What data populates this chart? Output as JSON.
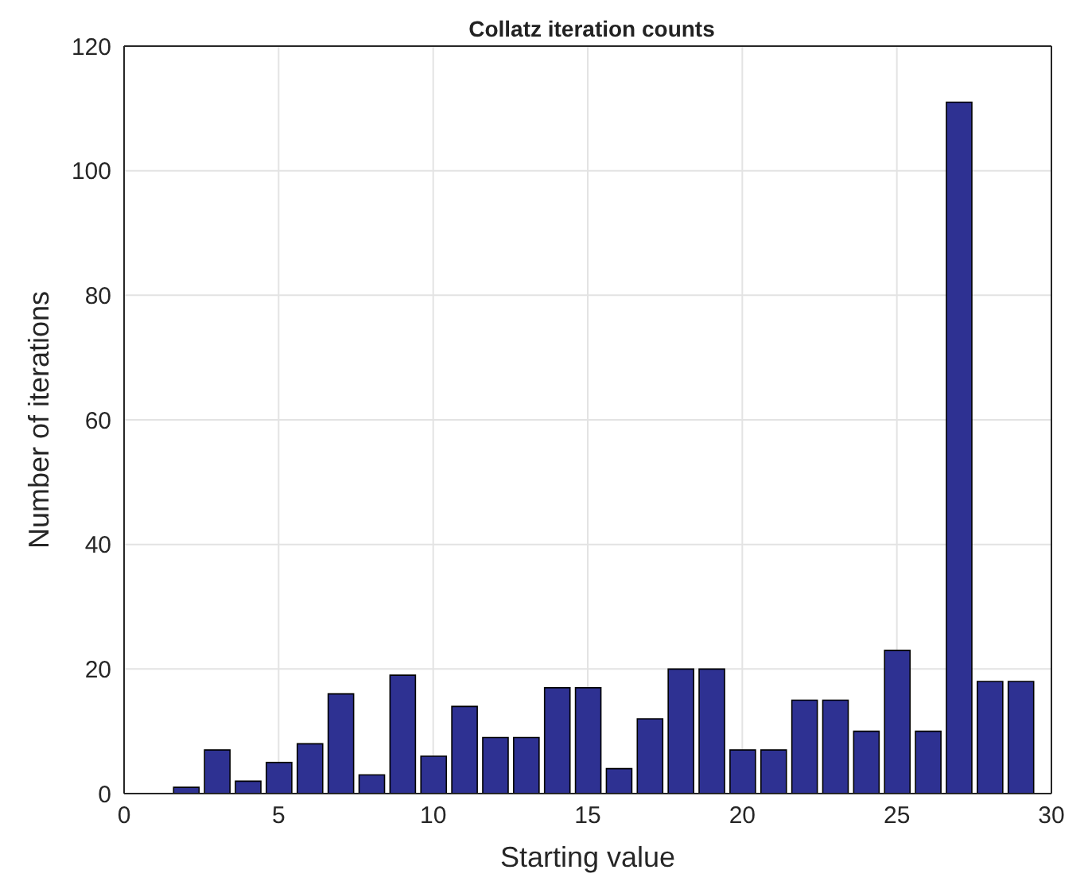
{
  "chart_data": {
    "type": "bar",
    "title": "Collatz iteration counts",
    "xlabel": "Starting value",
    "ylabel": "Number of iterations",
    "x": [
      2,
      3,
      4,
      5,
      6,
      7,
      8,
      9,
      10,
      11,
      12,
      13,
      14,
      15,
      16,
      17,
      18,
      19,
      20,
      21,
      22,
      23,
      24,
      25,
      26,
      27,
      28,
      29
    ],
    "values": [
      1,
      7,
      2,
      5,
      8,
      16,
      3,
      19,
      6,
      14,
      9,
      9,
      17,
      17,
      4,
      12,
      20,
      20,
      7,
      7,
      15,
      15,
      10,
      23,
      10,
      111,
      18,
      18
    ],
    "color": "#2e3192",
    "xlim": [
      0,
      30
    ],
    "xticks": [
      0,
      5,
      10,
      15,
      20,
      25,
      30
    ],
    "ylim": [
      0,
      120
    ],
    "yticks": [
      0,
      20,
      40,
      60,
      80,
      100,
      120
    ],
    "grid": true
  }
}
